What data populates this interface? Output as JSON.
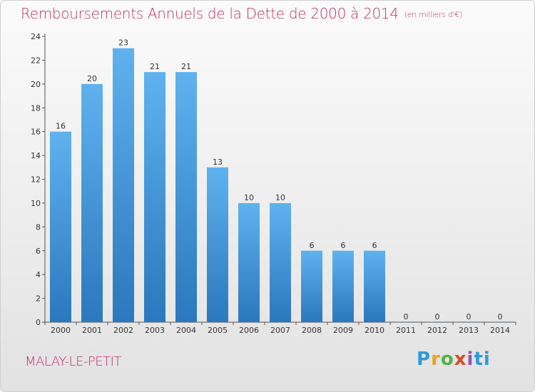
{
  "chart_data": {
    "type": "bar",
    "title": "Remboursements Annuels de la Dette de 2000 à 2014",
    "unit_label": "(en milliers d'€)",
    "categories": [
      "2000",
      "2001",
      "2002",
      "2003",
      "2004",
      "2005",
      "2006",
      "2007",
      "2008",
      "2009",
      "2010",
      "2011",
      "2012",
      "2013",
      "2014"
    ],
    "values": [
      16,
      20,
      23,
      21,
      21,
      13,
      10,
      10,
      6,
      6,
      6,
      0,
      0,
      0,
      0
    ],
    "ylim": [
      0,
      24
    ],
    "yticks": [
      0,
      2,
      4,
      6,
      8,
      10,
      12,
      14,
      16,
      18,
      20,
      22,
      24
    ],
    "grid": false,
    "bar_color": "#3a8fd6"
  },
  "footer": {
    "commune": "MALAY-LE-PETIT",
    "logo_text": "Proxiti"
  },
  "colors": {
    "title": "#c0306a",
    "bar_top": "#5fb2ee",
    "bar_bottom": "#2a78bd"
  }
}
